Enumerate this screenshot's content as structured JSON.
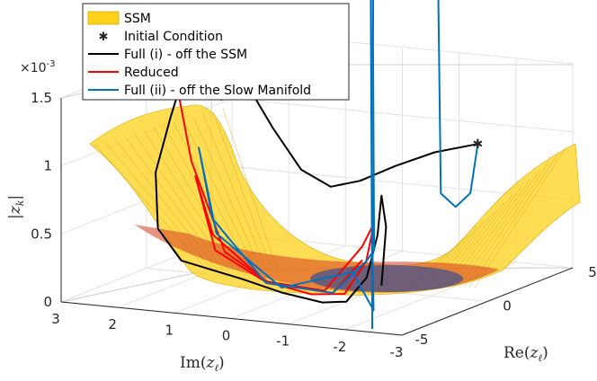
{
  "chart_data": {
    "type": "3d-line",
    "view": "3d",
    "grid": true,
    "legend_position": "top-left",
    "axes": {
      "x": {
        "label": "Im(z_ℓ)",
        "label_base": "Im(",
        "label_var": "z",
        "label_sub": "ℓ",
        "label_close": ")",
        "range": [
          -3,
          3
        ],
        "ticks": [
          "3",
          "2",
          "1",
          "0",
          "-1",
          "-2",
          "-3"
        ]
      },
      "y": {
        "label": "Re(z_ℓ)",
        "label_base": "Re(",
        "label_var": "z",
        "label_sub": "ℓ",
        "label_close": ")",
        "range": [
          -5,
          5
        ],
        "ticks": [
          "5",
          "0",
          "-5"
        ]
      },
      "z": {
        "label": "|z_k|",
        "label_bar": "|",
        "label_var": "z",
        "label_sub": "k",
        "range": [
          0,
          0.0015
        ],
        "ticks": [
          "0",
          "0.5",
          "1",
          "1.5"
        ],
        "exponent_base": "×10",
        "exponent_power": "-3"
      }
    },
    "legend": [
      {
        "label": "SSM",
        "style": "patch",
        "color": "#FFD21A"
      },
      {
        "label": "Initial Condition",
        "style": "marker",
        "color": "#FF0000"
      },
      {
        "label": "Full (i) - off the SSM",
        "style": "line",
        "color": "#000000"
      },
      {
        "label": "Reduced",
        "style": "line",
        "color": "#FF0000"
      },
      {
        "label": "Full (ii) - off the Slow Manifold",
        "style": "line",
        "color": "#0072BD"
      }
    ],
    "initial_condition": {
      "x": -1.9,
      "y": 3.1,
      "z": 0.00096
    },
    "series": [
      {
        "name": "Full (i) - off the SSM",
        "color": "#000000",
        "points": [
          [
            -1.9,
            3.1,
            0.00096
          ],
          [
            -1.2,
            2.9,
            0.00088
          ],
          [
            -0.6,
            2.6,
            0.00077
          ],
          [
            -0.1,
            2.2,
            0.00066
          ],
          [
            0.3,
            1.8,
            0.00062
          ],
          [
            0.7,
            1.4,
            0.00075
          ],
          [
            1.1,
            1.1,
            0.00105
          ],
          [
            1.4,
            0.9,
            0.0013
          ],
          [
            1.9,
            0.7,
            0.00125
          ],
          [
            2.5,
            0.6,
            0.00145
          ],
          [
            2.7,
            0.4,
            0.0011
          ],
          [
            2.9,
            0.2,
            0.0007
          ],
          [
            2.8,
            0.0,
            0.0003
          ],
          [
            2.3,
            -0.3,
            0.0001
          ],
          [
            1.0,
            -1.0,
            5e-05
          ],
          [
            0.0,
            -2.0,
            4e-05
          ],
          [
            -1.0,
            -3.0,
            6e-05
          ],
          [
            -1.6,
            -3.6,
            0.00012
          ],
          [
            -1.9,
            -3.4,
            0.0003
          ],
          [
            -2.0,
            -3.1,
            0.0006
          ],
          [
            -2.1,
            -3.2,
            0.0009
          ],
          [
            -2.3,
            -3.6,
            0.0007
          ],
          [
            -2.4,
            -4.2,
            0.0003
          ]
        ]
      },
      {
        "name": "Reduced",
        "color": "#FF0000",
        "points": [
          [
            2.6,
            0.5,
            0.0013
          ],
          [
            2.3,
            0.3,
            0.0008
          ],
          [
            1.5,
            -0.4,
            0.0002
          ],
          [
            0.5,
            -1.2,
            6e-05
          ],
          [
            -0.5,
            -2.0,
            5e-05
          ],
          [
            -1.3,
            -2.7,
            0.00012
          ],
          [
            -1.8,
            -3.1,
            0.0004
          ],
          [
            -2.0,
            -3.3,
            0.0007
          ],
          [
            -1.7,
            -3.0,
            0.0005
          ],
          [
            -0.8,
            -2.2,
            0.0001
          ],
          [
            0.6,
            -1.0,
            5e-05
          ],
          [
            1.8,
            -0.1,
            0.0003
          ],
          [
            2.2,
            0.2,
            0.0007
          ],
          [
            1.7,
            -0.3,
            0.0002
          ],
          [
            0.5,
            -1.2,
            5e-05
          ],
          [
            -1.0,
            -2.4,
            0.0001
          ],
          [
            -1.7,
            -3.0,
            0.0004
          ]
        ]
      },
      {
        "name": "Full (ii) - off the Slow Manifold",
        "color": "#0072BD",
        "points": [
          [
            -1.9,
            3.1,
            0.00096
          ],
          [
            -1.8,
            3.0,
            0.0006
          ],
          [
            -1.6,
            2.8,
            0.0005
          ],
          [
            -1.4,
            2.6,
            0.0006
          ],
          [
            -1.35,
            2.6,
            0.0022
          ],
          [
            -1.3,
            2.7,
            0.0035
          ],
          [
            -1.6,
            -1.0,
            0.004
          ],
          [
            -1.9,
            -3.0,
            0.0033
          ],
          [
            -1.95,
            -3.2,
            0.002
          ],
          [
            -2.0,
            -3.3,
            0.0005
          ],
          [
            -1.8,
            -3.1,
            0.0004
          ],
          [
            -1.0,
            -2.4,
            0.0001
          ],
          [
            0.6,
            -1.0,
            4e-05
          ],
          [
            1.9,
            0.2,
            0.0004
          ],
          [
            2.2,
            0.4,
            0.0009
          ],
          [
            1.8,
            0.1,
            0.0003
          ],
          [
            0.2,
            -1.4,
            4e-05
          ],
          [
            -1.5,
            -2.9,
            0.0003
          ],
          [
            -2.2,
            -4.0,
            0.0001
          ],
          [
            -2.3,
            -4.4,
            0.0006
          ],
          [
            -2.35,
            -4.6,
            0.0012
          ],
          [
            -2.4,
            -4.8,
            0.002
          ],
          [
            -2.45,
            -5.0,
            0.003
          ],
          [
            -2.5,
            -5.2,
            0.0035
          ],
          [
            -2.55,
            -5.3,
            0.0018
          ],
          [
            -2.6,
            -5.4,
            5e-05
          ]
        ]
      }
    ]
  }
}
